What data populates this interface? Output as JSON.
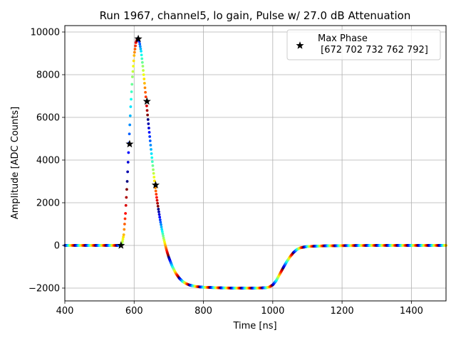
{
  "chart_data": {
    "type": "scatter",
    "title": "Run 1967, channel5, lo gain, Pulse w/ 27.0 dB Attenuation",
    "xlabel": "Time [ns]",
    "ylabel": "Amplitude [ADC Counts]",
    "xlim": [
      400,
      1500
    ],
    "ylim": [
      -2600,
      10300
    ],
    "xticks": [
      400,
      600,
      800,
      1000,
      1200,
      1400
    ],
    "yticks": [
      -2000,
      0,
      2000,
      4000,
      6000,
      8000,
      10000
    ],
    "xtick_labels": [
      "400",
      "600",
      "800",
      "1000",
      "1200",
      "1400"
    ],
    "ytick_labels": [
      "−2000",
      "0",
      "2000",
      "4000",
      "6000",
      "8000",
      "10000"
    ],
    "grid": true,
    "legend_position": "top-right",
    "colormap": "jet",
    "pulse_waveform": [
      [
        400,
        0
      ],
      [
        560,
        0
      ],
      [
        565,
        80
      ],
      [
        570,
        500
      ],
      [
        575,
        1500
      ],
      [
        580,
        3000
      ],
      [
        585,
        4800
      ],
      [
        590,
        6500
      ],
      [
        595,
        7900
      ],
      [
        600,
        8900
      ],
      [
        605,
        9500
      ],
      [
        610,
        9700
      ],
      [
        615,
        9550
      ],
      [
        620,
        9100
      ],
      [
        625,
        8400
      ],
      [
        630,
        7600
      ],
      [
        635,
        6750
      ],
      [
        640,
        5900
      ],
      [
        645,
        5100
      ],
      [
        650,
        4300
      ],
      [
        655,
        3550
      ],
      [
        660,
        2850
      ],
      [
        665,
        2250
      ],
      [
        670,
        1700
      ],
      [
        675,
        1200
      ],
      [
        680,
        750
      ],
      [
        685,
        350
      ],
      [
        690,
        0
      ],
      [
        695,
        -300
      ],
      [
        700,
        -560
      ],
      [
        710,
        -980
      ],
      [
        720,
        -1300
      ],
      [
        730,
        -1530
      ],
      [
        740,
        -1690
      ],
      [
        750,
        -1790
      ],
      [
        760,
        -1860
      ],
      [
        780,
        -1930
      ],
      [
        800,
        -1960
      ],
      [
        850,
        -1990
      ],
      [
        900,
        -2000
      ],
      [
        950,
        -2000
      ],
      [
        980,
        -1985
      ],
      [
        990,
        -1950
      ],
      [
        1000,
        -1850
      ],
      [
        1010,
        -1650
      ],
      [
        1020,
        -1350
      ],
      [
        1030,
        -1050
      ],
      [
        1040,
        -770
      ],
      [
        1050,
        -530
      ],
      [
        1060,
        -330
      ],
      [
        1070,
        -190
      ],
      [
        1080,
        -110
      ],
      [
        1100,
        -50
      ],
      [
        1150,
        -20
      ],
      [
        1200,
        -10
      ],
      [
        1300,
        0
      ],
      [
        1400,
        0
      ],
      [
        1500,
        0
      ]
    ],
    "series": [
      {
        "name": "Max Phase\n [672 702 732 762 792]",
        "marker": "star",
        "color": "#000000",
        "points": [
          {
            "x": 562,
            "y": 0
          },
          {
            "x": 587,
            "y": 4750
          },
          {
            "x": 612,
            "y": 9680
          },
          {
            "x": 637,
            "y": 6750
          },
          {
            "x": 662,
            "y": 2830
          }
        ]
      }
    ],
    "legend": {
      "entries": [
        {
          "line1": "Max Phase",
          "line2": " [672 702 732 762 792]"
        }
      ]
    }
  }
}
